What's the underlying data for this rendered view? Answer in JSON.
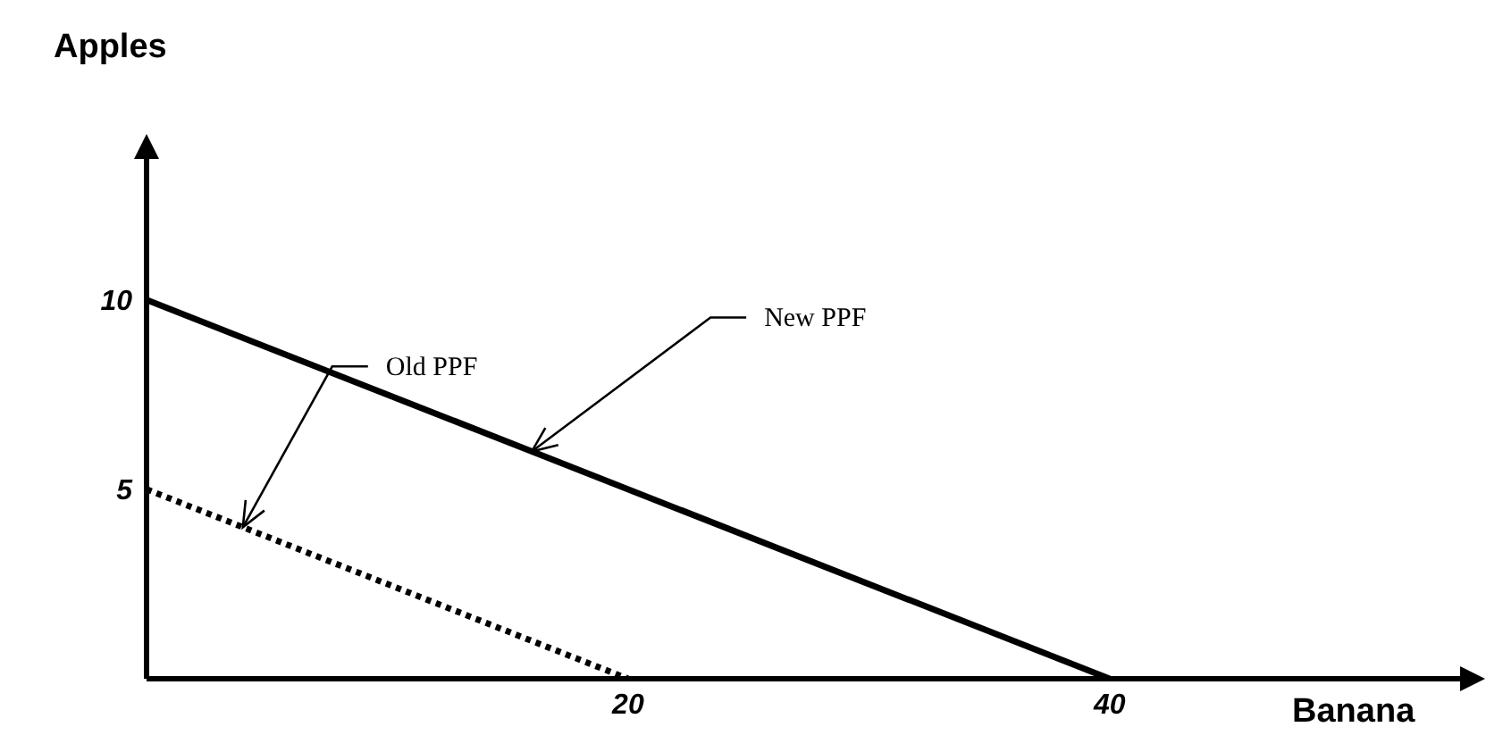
{
  "chart_data": {
    "type": "line",
    "xlabel": "Banana",
    "ylabel": "Apples",
    "series": [
      {
        "color": "#000000",
        "line_style": "dotted",
        "x": [
          0,
          20
        ],
        "values": [
          5,
          0
        ]
      },
      {
        "color": "#000000",
        "line_style": "solid",
        "x": [
          0,
          40
        ],
        "values": [
          10,
          0
        ]
      }
    ],
    "xlim": [
      0,
      55
    ],
    "xticks": [
      20,
      40
    ],
    "ylim": [
      0,
      14
    ],
    "yticks": [
      5,
      10
    ],
    "marker": "none",
    "annotations": [
      {
        "text": "Old PPF",
        "x": 4,
        "y": 4
      },
      {
        "text": "New PPF",
        "x": 16,
        "y": 6
      }
    ]
  }
}
